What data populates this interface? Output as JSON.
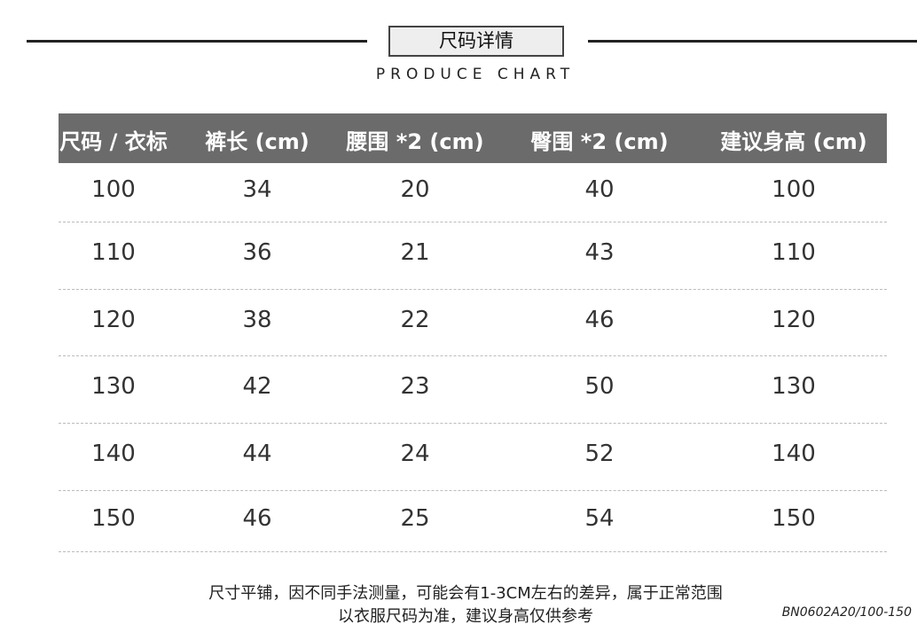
{
  "title": "尺码详情",
  "subtitle": "PRODUCE CHART",
  "columns": [
    "尺码 / 衣标",
    "裤长 (cm)",
    "腰围 *2 (cm)",
    "臀围 *2 (cm)",
    "建议身高 (cm)"
  ],
  "rows": [
    [
      "100",
      "34",
      "20",
      "40",
      "100"
    ],
    [
      "110",
      "36",
      "21",
      "43",
      "110"
    ],
    [
      "120",
      "38",
      "22",
      "46",
      "120"
    ],
    [
      "130",
      "42",
      "23",
      "50",
      "130"
    ],
    [
      "140",
      "44",
      "24",
      "52",
      "140"
    ],
    [
      "150",
      "46",
      "25",
      "54",
      "150"
    ]
  ],
  "note_line1": "尺寸平铺，因不同手法测量，可能会有1-3CM左右的差异，属于正常范围",
  "note_line2": "以衣服尺码为准，建议身高仅供参考",
  "product_code": "BN0602A20/100-150",
  "colors": {
    "header_bg": "#6b6b6b",
    "title_bg": "#eeeeee"
  }
}
